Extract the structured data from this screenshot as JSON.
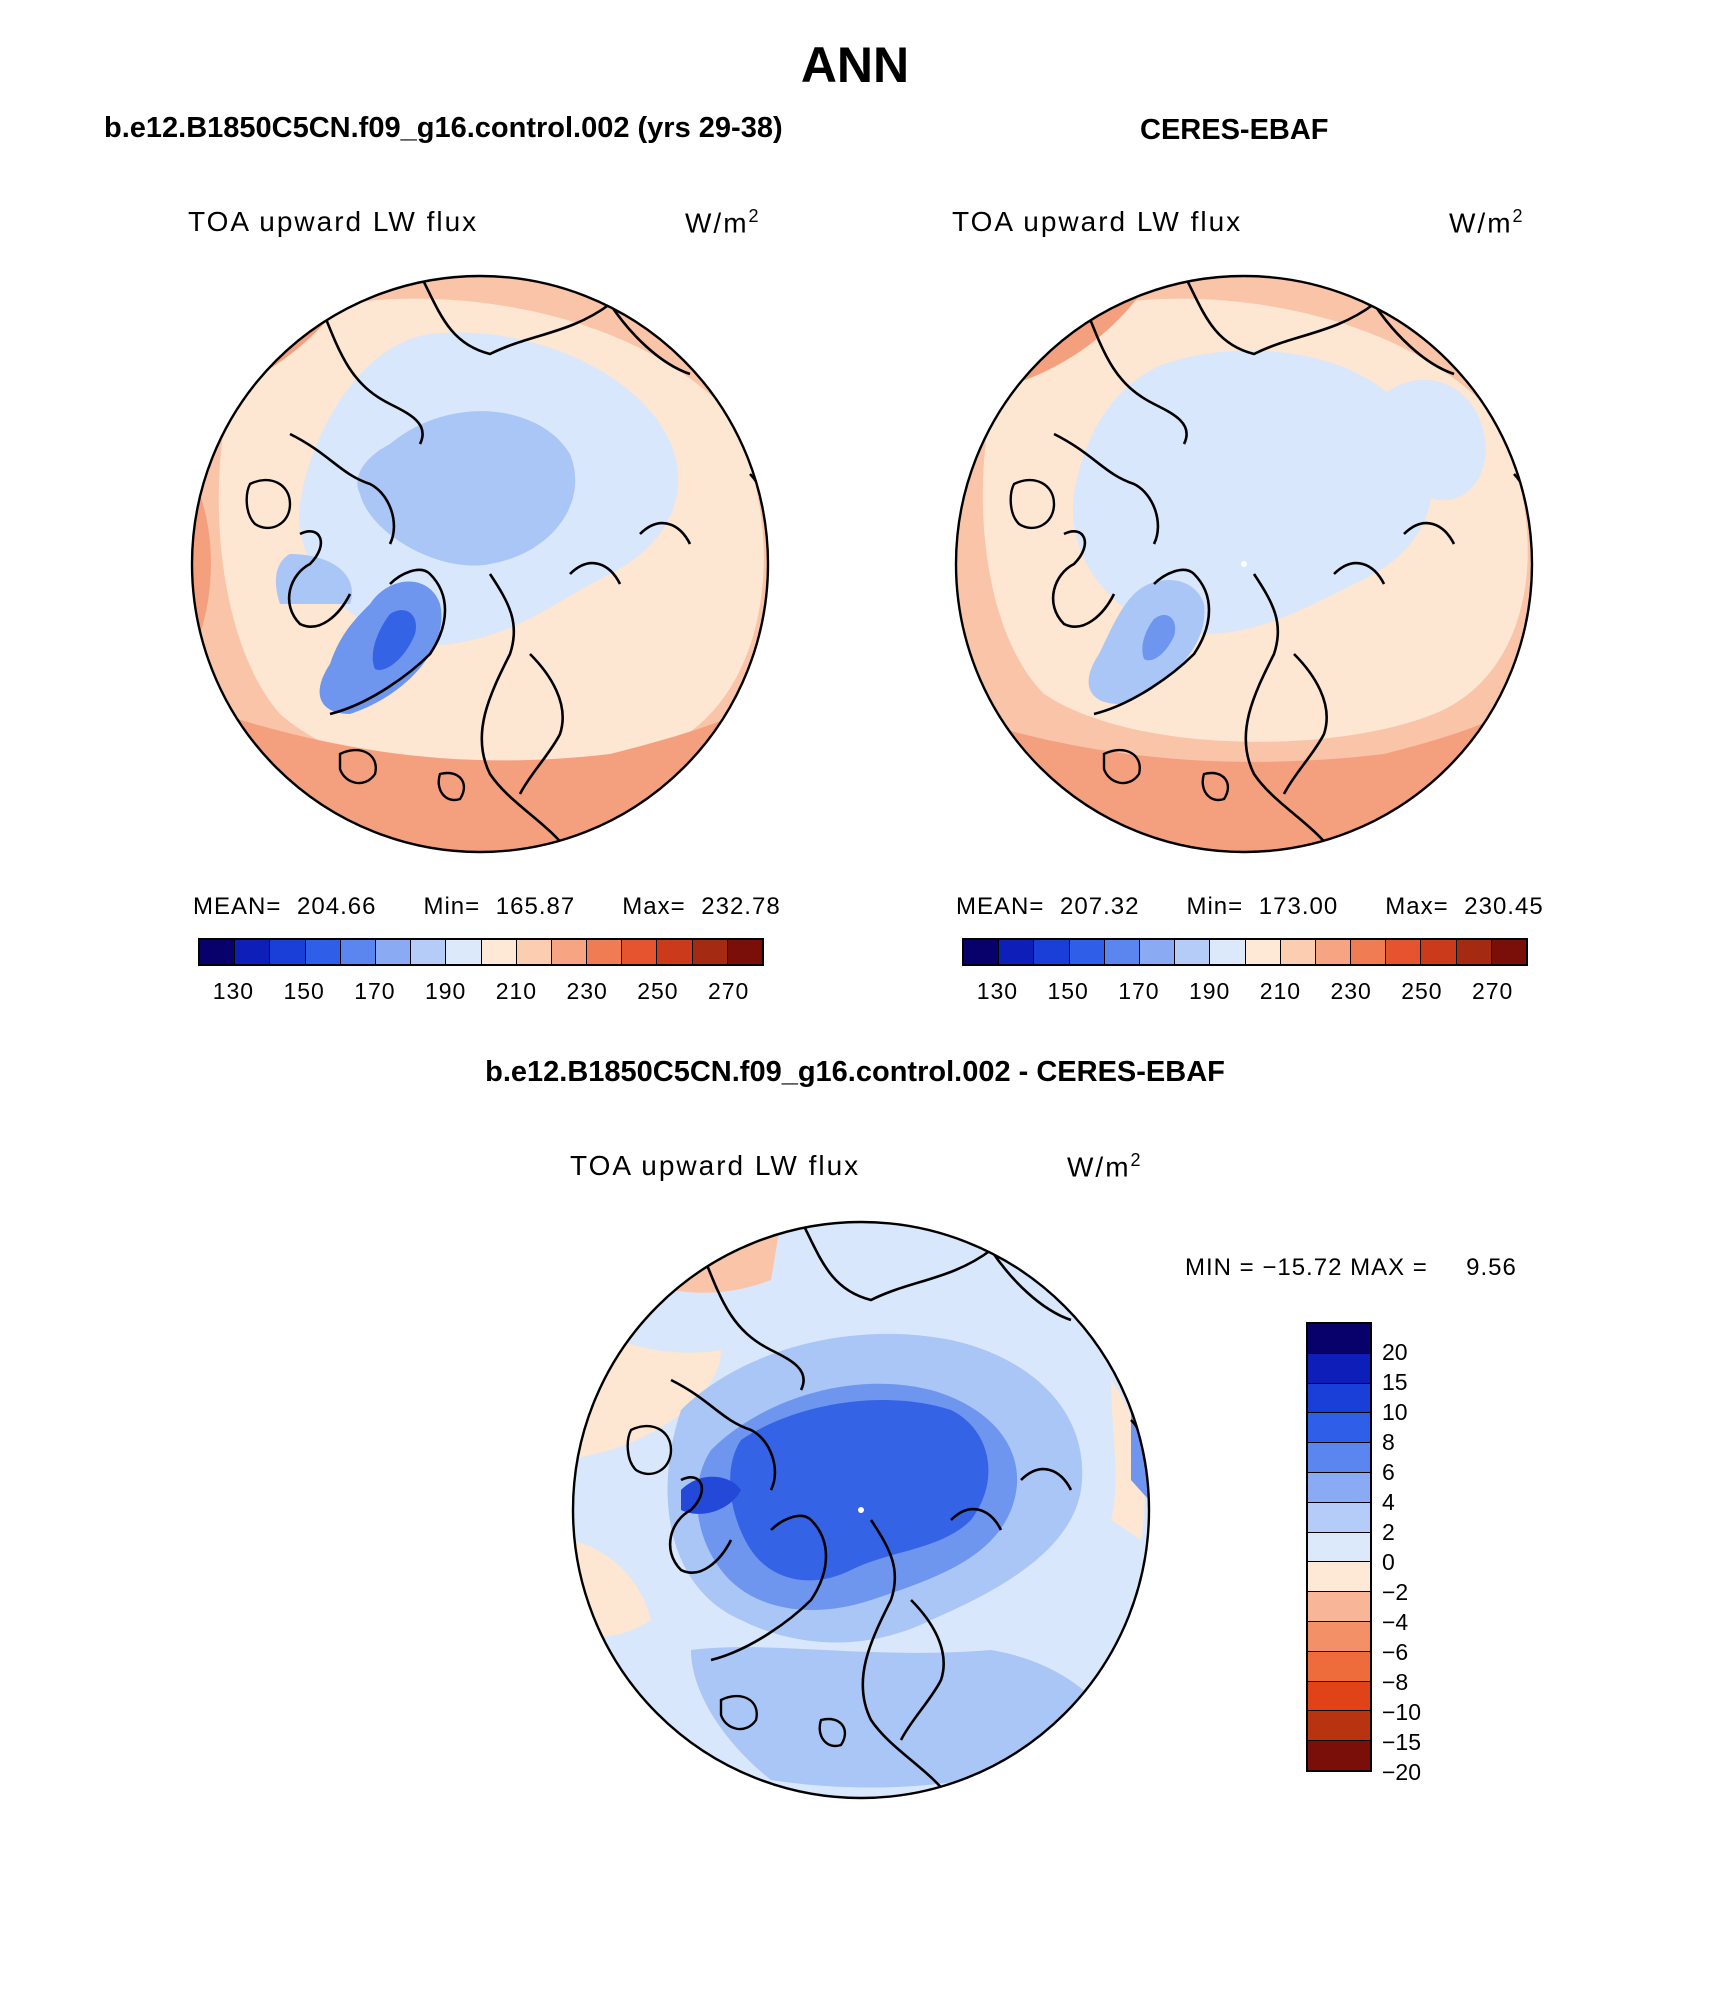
{
  "page": {
    "title": "ANN",
    "comparison_title": "b.e12.B1850C5CN.f09_g16.control.002 - CERES-EBAF"
  },
  "panels": [
    {
      "header": "b.e12.B1850C5CN.f09_g16.control.002 (yrs 29-38)",
      "variable": "TOA upward LW flux",
      "units": "W/m",
      "units_exp": "2",
      "stats": {
        "mean_label": "MEAN= 204.66",
        "min_label": "Min= 165.87",
        "max_label": "Max= 232.78"
      }
    },
    {
      "header": "CERES-EBAF",
      "variable": "TOA upward LW flux",
      "units": "W/m",
      "units_exp": "2",
      "stats": {
        "mean_label": "MEAN= 207.32",
        "min_label": "Min= 173.00",
        "max_label": "Max= 230.45"
      }
    }
  ],
  "diff_panel": {
    "variable": "TOA upward LW flux",
    "units": "W/m",
    "units_exp": "2",
    "minmax_label": "MIN = −15.72 MAX =     9.56"
  },
  "colorbar_main": {
    "colors": [
      "#08006b",
      "#0d1fb8",
      "#1a3fd9",
      "#2f5fe8",
      "#5c86ef",
      "#8aaaf3",
      "#b5ccf8",
      "#dbe9fb",
      "#fde9d6",
      "#fbcdb1",
      "#f6a482",
      "#f07c54",
      "#e6542f",
      "#cc3a1c",
      "#a52a12",
      "#7a0f0a"
    ],
    "tick_labels": [
      "130",
      "150",
      "170",
      "190",
      "210",
      "230",
      "250",
      "270"
    ]
  },
  "colorbar_diff": {
    "colors": [
      "#08006b",
      "#0d1fb8",
      "#1a3fd9",
      "#2f5fe8",
      "#5c86ef",
      "#8aaaf3",
      "#b5ccf8",
      "#dbe9fb",
      "#fde9d6",
      "#f8b597",
      "#f39067",
      "#ee6b3c",
      "#e04318",
      "#b83410",
      "#7a0f0a"
    ],
    "tick_labels": [
      "20",
      "15",
      "10",
      "8",
      "6",
      "4",
      "2",
      "0",
      "−2",
      "−4",
      "−6",
      "−8",
      "−10",
      "−15",
      "−20"
    ]
  },
  "map_colors": {
    "warm_light": "#fde6d2",
    "warm_mid": "#f9c4a8",
    "warm_dark": "#f4a07e",
    "cool_light": "#d8e7fb",
    "cool_mid": "#aac6f6",
    "cool_dark": "#6e96ee",
    "cool_deep": "#3563e6",
    "cool_deepest": "#2448d8"
  }
}
